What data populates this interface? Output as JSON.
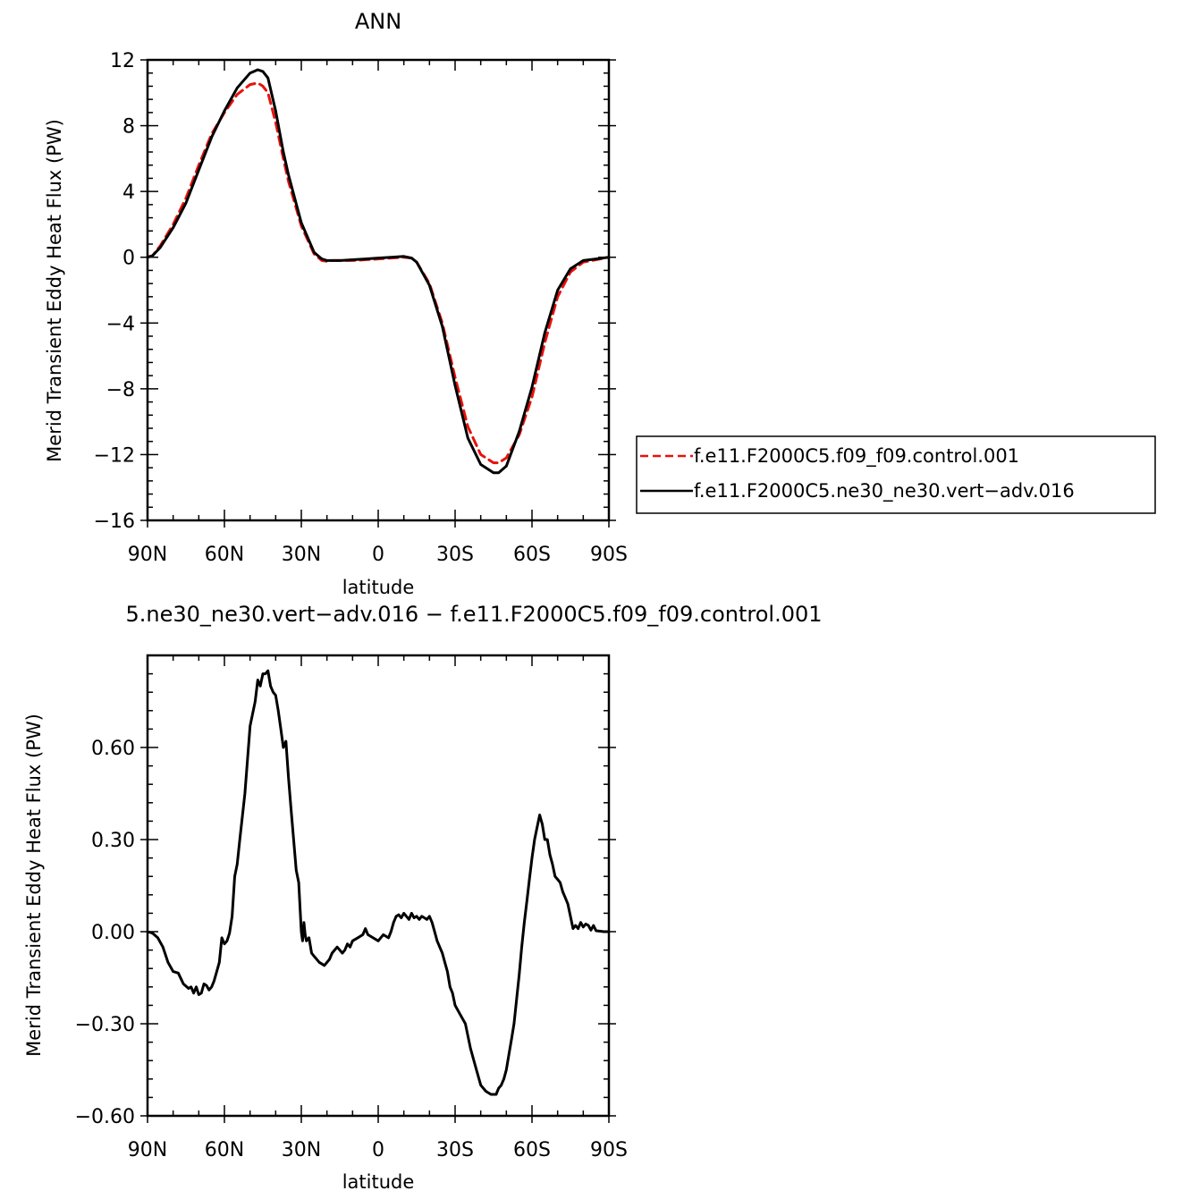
{
  "chart_data": [
    {
      "type": "line",
      "title": "ANN",
      "xlabel": "latitude",
      "ylabel": "Merid Transient Eddy Heat Flux (PW)",
      "xlim": [
        90,
        -90
      ],
      "ylim": [
        -16,
        12
      ],
      "xticks": [
        {
          "value": 90,
          "label": "90N"
        },
        {
          "value": 60,
          "label": "60N"
        },
        {
          "value": 30,
          "label": "30N"
        },
        {
          "value": 0,
          "label": "0"
        },
        {
          "value": -30,
          "label": "30S"
        },
        {
          "value": -60,
          "label": "60S"
        },
        {
          "value": -90,
          "label": "90S"
        }
      ],
      "yticks": [
        {
          "value": 12,
          "label": "12"
        },
        {
          "value": 8,
          "label": "8"
        },
        {
          "value": 4,
          "label": "4"
        },
        {
          "value": 0,
          "label": "0"
        },
        {
          "value": -4,
          "label": "−4"
        },
        {
          "value": -8,
          "label": "−8"
        },
        {
          "value": -12,
          "label": "−12"
        },
        {
          "value": -16,
          "label": "−16"
        }
      ],
      "legend_position": "right",
      "series": [
        {
          "name": "f.e11.F2000C5.f09_f09.control.001",
          "color": "#e8120c",
          "style": "dashed",
          "x": [
            90,
            88,
            85,
            80,
            75,
            70,
            65,
            60,
            55,
            50,
            47,
            45,
            43,
            40,
            37,
            35,
            30,
            25,
            22,
            20,
            18,
            15,
            10,
            5,
            0,
            -5,
            -10,
            -13,
            -15,
            -20,
            -25,
            -30,
            -35,
            -40,
            -45,
            -47,
            -50,
            -55,
            -60,
            -65,
            -70,
            -75,
            -80,
            -85,
            -90
          ],
          "y": [
            0.0,
            0.1,
            0.7,
            2.0,
            3.6,
            5.6,
            7.5,
            8.8,
            9.9,
            10.5,
            10.6,
            10.4,
            10.0,
            8.2,
            6.0,
            4.6,
            1.9,
            0.2,
            -0.2,
            -0.25,
            -0.2,
            -0.2,
            -0.2,
            -0.15,
            -0.1,
            -0.05,
            0.0,
            -0.05,
            -0.3,
            -1.6,
            -4.0,
            -7.3,
            -10.3,
            -12.0,
            -12.5,
            -12.5,
            -12.2,
            -10.8,
            -8.5,
            -5.2,
            -2.4,
            -0.9,
            -0.3,
            -0.15,
            0.0
          ]
        },
        {
          "name": "f.e11.F2000C5.ne30_ne30.vert−adv.016",
          "color": "#000000",
          "style": "solid",
          "x": [
            90,
            88,
            85,
            80,
            75,
            70,
            65,
            60,
            55,
            50,
            47,
            45,
            43,
            40,
            37,
            35,
            30,
            25,
            22,
            20,
            18,
            15,
            10,
            5,
            0,
            -5,
            -10,
            -13,
            -15,
            -20,
            -25,
            -30,
            -35,
            -40,
            -45,
            -47,
            -50,
            -55,
            -60,
            -65,
            -70,
            -75,
            -80,
            -85,
            -90
          ],
          "y": [
            0.0,
            0.1,
            0.6,
            1.8,
            3.3,
            5.3,
            7.3,
            8.9,
            10.3,
            11.2,
            11.4,
            11.3,
            10.9,
            8.9,
            6.4,
            5.0,
            2.1,
            0.3,
            -0.1,
            -0.2,
            -0.2,
            -0.2,
            -0.15,
            -0.1,
            -0.05,
            0.0,
            0.05,
            -0.05,
            -0.3,
            -1.7,
            -4.2,
            -7.8,
            -11.0,
            -12.6,
            -13.1,
            -13.1,
            -12.7,
            -10.6,
            -7.9,
            -4.6,
            -2.0,
            -0.7,
            -0.2,
            -0.1,
            0.0
          ]
        }
      ]
    },
    {
      "type": "line",
      "title": "5.ne30_ne30.vert−adv.016 − f.e11.F2000C5.f09_f09.control.001",
      "xlabel": "latitude",
      "ylabel": "Merid Transient Eddy Heat Flux (PW)",
      "xlim": [
        90,
        -90
      ],
      "ylim": [
        -0.6,
        0.9
      ],
      "xticks": [
        {
          "value": 90,
          "label": "90N"
        },
        {
          "value": 60,
          "label": "60N"
        },
        {
          "value": 30,
          "label": "30N"
        },
        {
          "value": 0,
          "label": "0"
        },
        {
          "value": -30,
          "label": "30S"
        },
        {
          "value": -60,
          "label": "60S"
        },
        {
          "value": -90,
          "label": "90S"
        }
      ],
      "yticks": [
        {
          "value": 0.6,
          "label": "0.60"
        },
        {
          "value": 0.3,
          "label": "0.30"
        },
        {
          "value": 0.0,
          "label": "0.00"
        },
        {
          "value": -0.3,
          "label": "−0.30"
        },
        {
          "value": -0.6,
          "label": "−0.60"
        }
      ],
      "series": [
        {
          "color": "#000000",
          "style": "solid",
          "x": [
            90,
            88,
            86,
            84,
            82,
            80,
            78,
            76,
            74,
            73,
            72,
            71,
            70,
            69,
            68,
            67,
            66,
            65,
            64,
            63,
            62,
            61,
            60,
            59,
            58,
            57,
            56,
            55,
            54,
            52,
            50,
            48,
            47,
            46,
            45,
            44,
            43,
            42,
            41,
            40,
            39,
            38,
            37,
            36,
            35,
            34,
            33,
            32,
            31,
            30,
            29.5,
            29,
            28.5,
            28,
            27,
            26,
            25,
            23,
            21,
            20,
            19,
            18,
            16,
            14,
            13,
            12,
            11,
            10,
            8,
            6,
            5,
            4,
            2,
            0,
            -2,
            -4,
            -5,
            -6,
            -7,
            -8,
            -9,
            -10,
            -11,
            -12,
            -13,
            -14,
            -15,
            -16,
            -17,
            -18,
            -19,
            -20,
            -21,
            -22,
            -23,
            -24,
            -25,
            -26,
            -27,
            -28,
            -29,
            -30,
            -32,
            -34,
            -36,
            -38,
            -40,
            -42,
            -44,
            -46,
            -47,
            -48,
            -49,
            -50,
            -51,
            -52,
            -53,
            -54,
            -55,
            -56,
            -57,
            -58,
            -59,
            -60,
            -61,
            -62,
            -63,
            -64,
            -65,
            -66,
            -67,
            -68,
            -69,
            -70,
            -71,
            -72,
            -73,
            -74,
            -75,
            -76,
            -77,
            -78,
            -79,
            -80,
            -81,
            -82,
            -83,
            -84,
            -85,
            -86,
            -88,
            -90
          ],
          "y": [
            0.0,
            -0.005,
            -0.02,
            -0.05,
            -0.1,
            -0.13,
            -0.135,
            -0.17,
            -0.185,
            -0.18,
            -0.2,
            -0.18,
            -0.205,
            -0.2,
            -0.17,
            -0.175,
            -0.19,
            -0.18,
            -0.16,
            -0.13,
            -0.1,
            -0.02,
            -0.04,
            -0.03,
            -0.005,
            0.05,
            0.18,
            0.22,
            0.3,
            0.45,
            0.67,
            0.75,
            0.82,
            0.8,
            0.84,
            0.84,
            0.85,
            0.8,
            0.78,
            0.77,
            0.72,
            0.66,
            0.6,
            0.62,
            0.5,
            0.4,
            0.3,
            0.2,
            0.16,
            0.0,
            -0.03,
            0.03,
            -0.01,
            -0.03,
            -0.02,
            -0.07,
            -0.08,
            -0.1,
            -0.11,
            -0.1,
            -0.09,
            -0.07,
            -0.05,
            -0.07,
            -0.06,
            -0.04,
            -0.05,
            -0.03,
            -0.02,
            -0.01,
            0.01,
            -0.01,
            -0.02,
            -0.03,
            -0.01,
            -0.02,
            0.0,
            0.03,
            0.05,
            0.055,
            0.045,
            0.06,
            0.05,
            0.04,
            0.06,
            0.045,
            0.05,
            0.04,
            0.05,
            0.045,
            0.04,
            0.05,
            0.03,
            0.0,
            -0.03,
            -0.05,
            -0.07,
            -0.1,
            -0.13,
            -0.18,
            -0.2,
            -0.24,
            -0.27,
            -0.3,
            -0.38,
            -0.44,
            -0.5,
            -0.52,
            -0.53,
            -0.53,
            -0.51,
            -0.5,
            -0.48,
            -0.45,
            -0.4,
            -0.35,
            -0.3,
            -0.22,
            -0.14,
            -0.05,
            0.03,
            0.1,
            0.17,
            0.24,
            0.3,
            0.34,
            0.38,
            0.35,
            0.3,
            0.3,
            0.25,
            0.22,
            0.18,
            0.17,
            0.16,
            0.13,
            0.11,
            0.09,
            0.05,
            0.01,
            0.02,
            0.01,
            0.03,
            0.015,
            0.025,
            0.02,
            0.005,
            0.02,
            0.003,
            0.002,
            0.0,
            0.0
          ]
        }
      ]
    }
  ]
}
